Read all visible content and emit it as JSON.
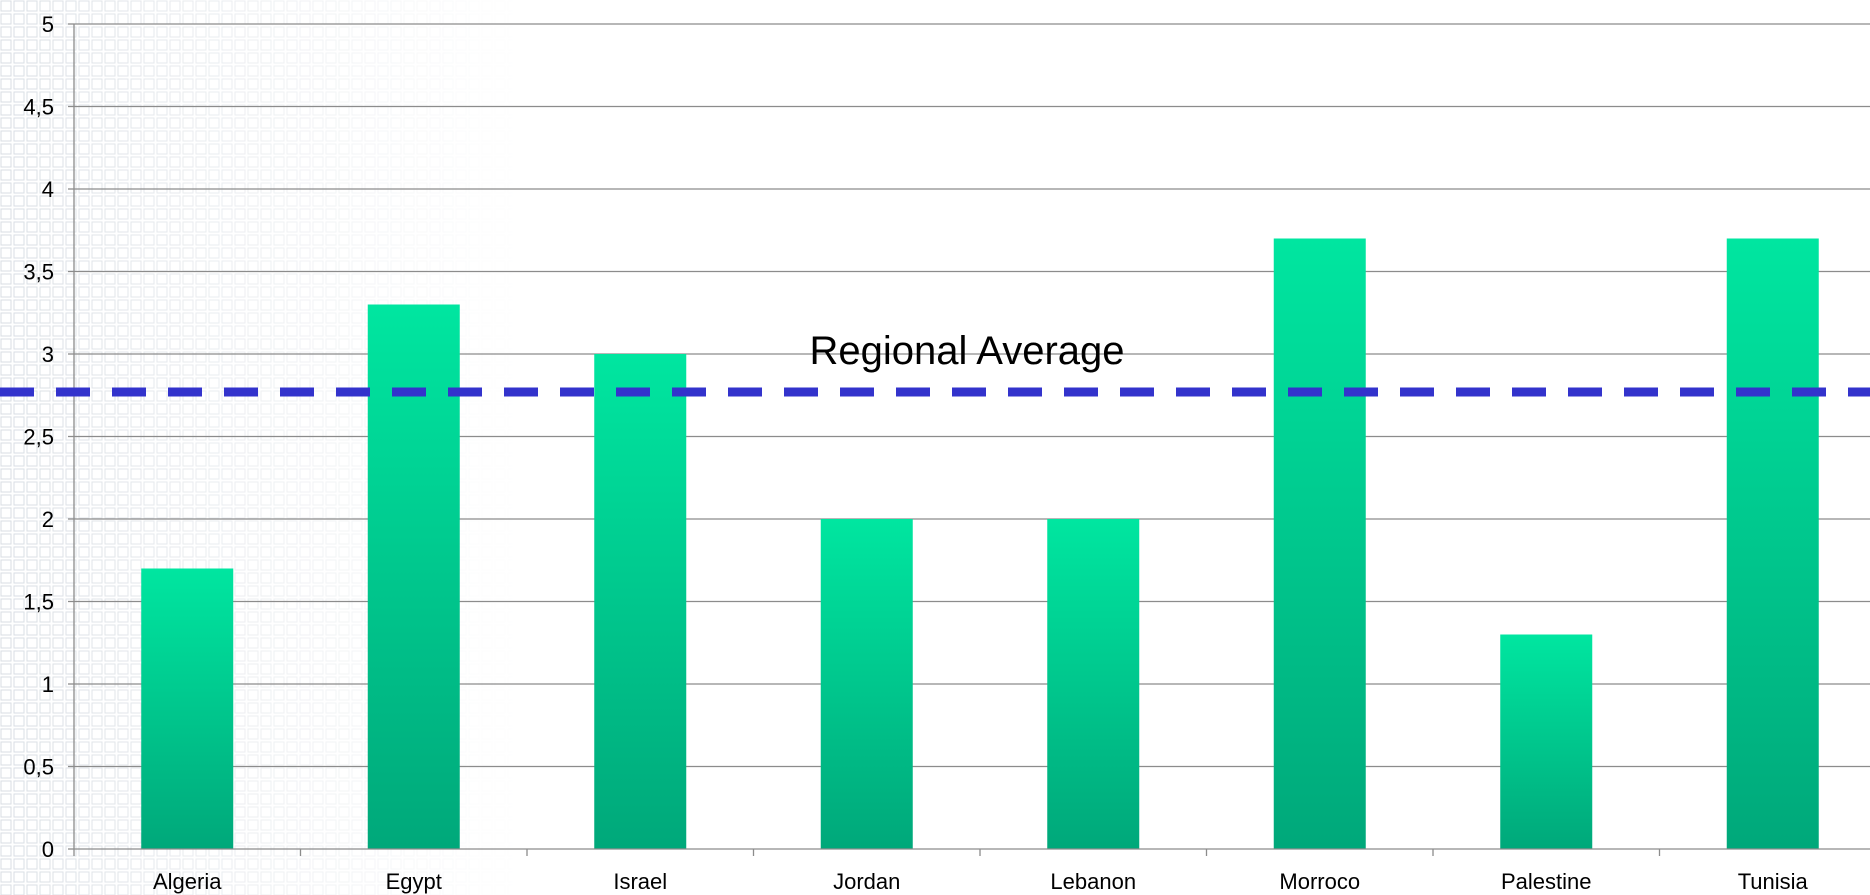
{
  "chart_data": {
    "type": "bar",
    "categories": [
      "Algeria",
      "Egypt",
      "Israel",
      "Jordan",
      "Lebanon",
      "Morroco",
      "Palestine",
      "Tunisia"
    ],
    "values": [
      1.7,
      3.3,
      3.0,
      2.0,
      2.0,
      3.7,
      1.3,
      3.7
    ],
    "ylim": [
      0,
      5
    ],
    "ytick_values": [
      0,
      0.5,
      1,
      1.5,
      2,
      2.5,
      3,
      3.5,
      4,
      4.5,
      5
    ],
    "ytick_labels": [
      "0",
      "0,5",
      "1",
      "1,5",
      "2",
      "2,5",
      "3",
      "3,5",
      "4",
      "4,5",
      "5"
    ],
    "grid": true,
    "reference_line": {
      "label": "Regional Average",
      "value": 2.77,
      "style": "dashed",
      "color": "#3333cc"
    },
    "colors": {
      "bar_top": "#00e6a0",
      "bar_bottom": "#00a87a",
      "gridline": "#8c8c8c",
      "axis": "#8c8c8c"
    }
  }
}
